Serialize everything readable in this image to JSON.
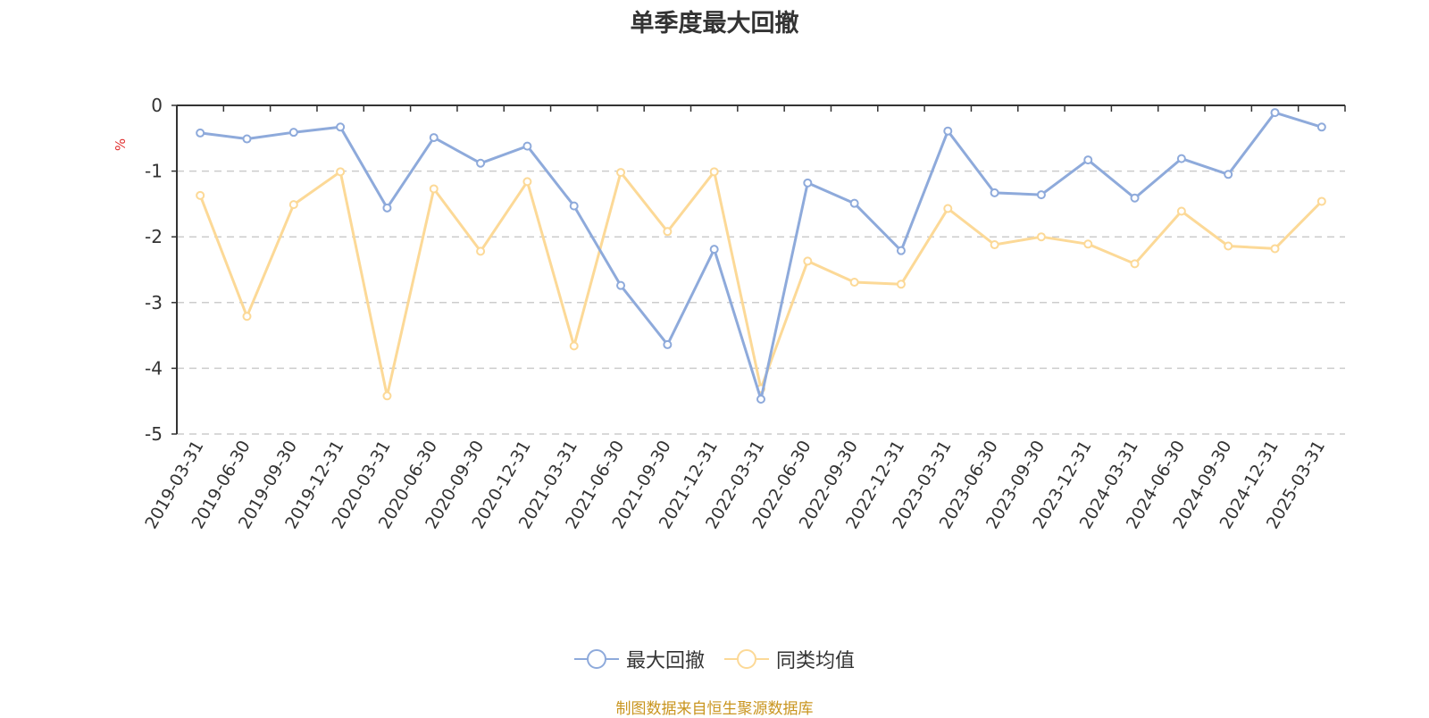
{
  "chart_data": {
    "type": "line",
    "title": "单季度最大回撤",
    "ylabel": "%",
    "ylim": [
      -5,
      0
    ],
    "yticks": [
      0,
      -1,
      -2,
      -3,
      -4,
      -5
    ],
    "grid": "horizontal dashed",
    "legend_position": "bottom",
    "categories": [
      "2019-03-31",
      "2019-06-30",
      "2019-09-30",
      "2019-12-31",
      "2020-03-31",
      "2020-06-30",
      "2020-09-30",
      "2020-12-31",
      "2021-03-31",
      "2021-06-30",
      "2021-09-30",
      "2021-12-31",
      "2022-03-31",
      "2022-06-30",
      "2022-09-30",
      "2022-12-31",
      "2023-03-31",
      "2023-06-30",
      "2023-09-30",
      "2023-12-31",
      "2024-03-31",
      "2024-06-30",
      "2024-09-30",
      "2024-12-31",
      "2025-03-31"
    ],
    "series": [
      {
        "name": "最大回撤",
        "color": "#8eaadb",
        "values": [
          -0.42,
          -0.51,
          -0.41,
          -0.33,
          -1.56,
          -0.49,
          -0.88,
          -0.62,
          -1.53,
          -2.74,
          -3.64,
          -2.19,
          -4.47,
          -1.18,
          -1.49,
          -2.21,
          -0.39,
          -1.33,
          -1.36,
          -0.83,
          -1.41,
          -0.81,
          -1.05,
          -0.11,
          -0.33
        ]
      },
      {
        "name": "同类均值",
        "color": "#fcd997",
        "values": [
          -1.37,
          -3.21,
          -1.51,
          -1.01,
          -4.42,
          -1.27,
          -2.22,
          -1.16,
          -3.66,
          -1.02,
          -1.92,
          -1.01,
          -4.31,
          -2.37,
          -2.69,
          -2.72,
          -1.57,
          -2.12,
          -2.0,
          -2.11,
          -2.41,
          -1.61,
          -2.14,
          -2.18,
          -1.46
        ]
      }
    ]
  },
  "footer": {
    "source": "制图数据来自恒生聚源数据库"
  }
}
